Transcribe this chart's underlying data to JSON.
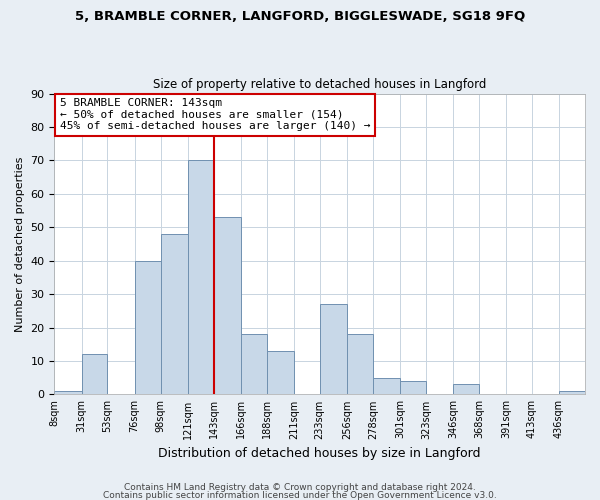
{
  "title": "5, BRAMBLE CORNER, LANGFORD, BIGGLESWADE, SG18 9FQ",
  "subtitle": "Size of property relative to detached houses in Langford",
  "xlabel": "Distribution of detached houses by size in Langford",
  "ylabel": "Number of detached properties",
  "bar_edges": [
    8,
    31,
    53,
    76,
    98,
    121,
    143,
    166,
    188,
    211,
    233,
    256,
    278,
    301,
    323,
    346,
    368,
    391,
    413,
    436,
    458
  ],
  "bar_heights": [
    1,
    12,
    0,
    40,
    48,
    70,
    53,
    18,
    13,
    0,
    27,
    18,
    5,
    4,
    0,
    3,
    0,
    0,
    0,
    1
  ],
  "bar_color": "#c8d8e8",
  "bar_edge_color": "#7090b0",
  "vline_x": 143,
  "vline_color": "#cc0000",
  "annotation_title": "5 BRAMBLE CORNER: 143sqm",
  "annotation_line1": "← 50% of detached houses are smaller (154)",
  "annotation_line2": "45% of semi-detached houses are larger (140) →",
  "annotation_box_color": "#cc0000",
  "ylim": [
    0,
    90
  ],
  "yticks": [
    0,
    10,
    20,
    30,
    40,
    50,
    60,
    70,
    80,
    90
  ],
  "footer1": "Contains HM Land Registry data © Crown copyright and database right 2024.",
  "footer2": "Contains public sector information licensed under the Open Government Licence v3.0.",
  "background_color": "#e8eef4",
  "plot_background_color": "#ffffff",
  "grid_color": "#c8d4e0"
}
